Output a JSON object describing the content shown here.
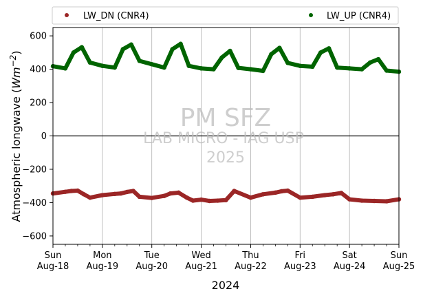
{
  "chart_data": {
    "type": "scatter",
    "xlabel": "2024",
    "ylabel_text": "Atmospheric longwave (",
    "ylabel_unit": "Wm",
    "ylabel_exp": "−2",
    "ylabel_close": ")",
    "ylim": [
      -650,
      650
    ],
    "yticks": [
      -600,
      -400,
      -200,
      0,
      200,
      400,
      600
    ],
    "ytick_labels": [
      "−600",
      "−400",
      "−200",
      "0",
      "200",
      "400",
      "600"
    ],
    "xlim": [
      "2024-08-18",
      "2024-08-25"
    ],
    "xticks": [
      {
        "day": "Sun",
        "date": "Aug-18"
      },
      {
        "day": "Mon",
        "date": "Aug-19"
      },
      {
        "day": "Tue",
        "date": "Aug-20"
      },
      {
        "day": "Wed",
        "date": "Aug-21"
      },
      {
        "day": "Thu",
        "date": "Aug-22"
      },
      {
        "day": "Fri",
        "date": "Aug-23"
      },
      {
        "day": "Sat",
        "date": "Aug-24"
      },
      {
        "day": "Sun",
        "date": "Aug-25"
      }
    ],
    "grid_x": true,
    "zero_line": true,
    "legend_position": "top, above plot",
    "watermark": {
      "line1": "PM SFZ",
      "line2": "LAB MICRO - IAG USP",
      "line3": "2025"
    },
    "series": [
      {
        "name": "LW_DN (CNR4)",
        "color": "#9b2626",
        "x": [
          "2024-08-18T00:00",
          "2024-08-18T06:00",
          "2024-08-18T09:00",
          "2024-08-18T12:00",
          "2024-08-18T15:00",
          "2024-08-18T18:00",
          "2024-08-19T00:00",
          "2024-08-19T06:00",
          "2024-08-19T09:00",
          "2024-08-19T12:00",
          "2024-08-19T15:00",
          "2024-08-19T18:00",
          "2024-08-20T00:00",
          "2024-08-20T06:00",
          "2024-08-20T09:00",
          "2024-08-20T13:00",
          "2024-08-20T17:00",
          "2024-08-20T20:00",
          "2024-08-21T00:00",
          "2024-08-21T04:00",
          "2024-08-21T08:00",
          "2024-08-21T12:00",
          "2024-08-21T16:00",
          "2024-08-22T00:00",
          "2024-08-22T06:00",
          "2024-08-22T12:00",
          "2024-08-22T15:00",
          "2024-08-22T18:00",
          "2024-08-23T00:00",
          "2024-08-23T06:00",
          "2024-08-23T12:00",
          "2024-08-23T16:00",
          "2024-08-23T20:00",
          "2024-08-24T00:00",
          "2024-08-24T06:00",
          "2024-08-24T12:00",
          "2024-08-24T18:00",
          "2024-08-25T00:00"
        ],
        "y": [
          -345,
          -335,
          -330,
          -328,
          -350,
          -370,
          -355,
          -348,
          -345,
          -336,
          -330,
          -365,
          -372,
          -360,
          -345,
          -340,
          -370,
          -388,
          -382,
          -390,
          -388,
          -385,
          -330,
          -370,
          -350,
          -340,
          -332,
          -328,
          -370,
          -365,
          -355,
          -350,
          -342,
          -380,
          -388,
          -390,
          -392,
          -380
        ]
      },
      {
        "name": "LW_UP (CNR4)",
        "color": "#006400",
        "x": [
          "2024-08-18T00:00",
          "2024-08-18T06:00",
          "2024-08-18T10:00",
          "2024-08-18T14:00",
          "2024-08-18T18:00",
          "2024-08-19T00:00",
          "2024-08-19T06:00",
          "2024-08-19T10:00",
          "2024-08-19T14:00",
          "2024-08-19T18:00",
          "2024-08-20T00:00",
          "2024-08-20T06:00",
          "2024-08-20T10:00",
          "2024-08-20T14:00",
          "2024-08-20T18:00",
          "2024-08-21T00:00",
          "2024-08-21T06:00",
          "2024-08-21T10:00",
          "2024-08-21T14:00",
          "2024-08-21T18:00",
          "2024-08-22T00:00",
          "2024-08-22T06:00",
          "2024-08-22T10:00",
          "2024-08-22T14:00",
          "2024-08-22T18:00",
          "2024-08-23T00:00",
          "2024-08-23T06:00",
          "2024-08-23T10:00",
          "2024-08-23T14:00",
          "2024-08-23T18:00",
          "2024-08-24T00:00",
          "2024-08-24T06:00",
          "2024-08-24T10:00",
          "2024-08-24T14:00",
          "2024-08-24T18:00",
          "2024-08-25T00:00"
        ],
        "y": [
          418,
          405,
          500,
          532,
          440,
          420,
          410,
          520,
          548,
          450,
          430,
          410,
          520,
          552,
          420,
          405,
          400,
          470,
          510,
          408,
          400,
          390,
          490,
          528,
          438,
          420,
          415,
          500,
          525,
          410,
          405,
          400,
          440,
          460,
          392,
          385
        ]
      }
    ]
  }
}
